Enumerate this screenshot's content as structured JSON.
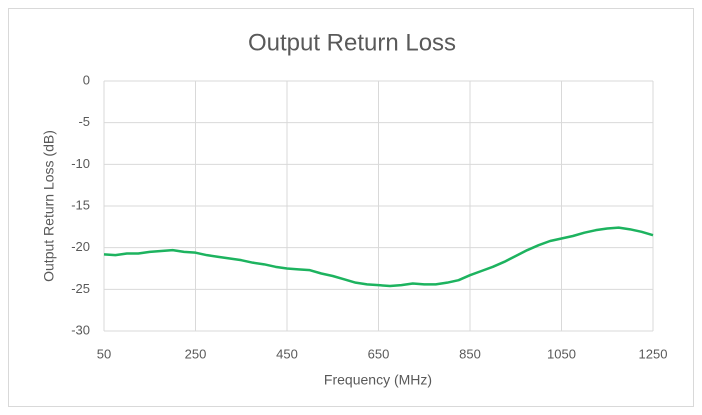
{
  "chart_data": {
    "type": "line",
    "title": "Output Return Loss",
    "x_label": "Frequency (MHz)",
    "y_label": "Output Return Loss (dB)",
    "x": [
      50,
      75,
      100,
      125,
      150,
      175,
      200,
      225,
      250,
      275,
      300,
      325,
      350,
      375,
      400,
      425,
      450,
      475,
      500,
      525,
      550,
      575,
      600,
      625,
      650,
      675,
      700,
      725,
      750,
      775,
      800,
      825,
      850,
      875,
      900,
      925,
      950,
      975,
      1000,
      1025,
      1050,
      1075,
      1100,
      1125,
      1150,
      1175,
      1200,
      1225,
      1250
    ],
    "series": [
      {
        "name": "Output Return Loss",
        "color": "#1db35f",
        "values": [
          -20.8,
          -20.9,
          -20.7,
          -20.7,
          -20.5,
          -20.4,
          -20.3,
          -20.5,
          -20.6,
          -20.9,
          -21.1,
          -21.3,
          -21.5,
          -21.8,
          -22.0,
          -22.3,
          -22.5,
          -22.6,
          -22.7,
          -23.1,
          -23.4,
          -23.8,
          -24.2,
          -24.4,
          -24.5,
          -24.6,
          -24.5,
          -24.3,
          -24.4,
          -24.4,
          -24.2,
          -23.9,
          -23.3,
          -22.8,
          -22.3,
          -21.7,
          -21.0,
          -20.3,
          -19.7,
          -19.2,
          -18.9,
          -18.6,
          -18.2,
          -17.9,
          -17.7,
          -17.6,
          -17.8,
          -18.1,
          -18.5
        ]
      }
    ],
    "xlim": [
      50,
      1250
    ],
    "xticks": [
      50,
      250,
      450,
      650,
      850,
      1050,
      1250
    ],
    "ylim": [
      -30,
      0
    ],
    "yticks": [
      0,
      -5,
      -10,
      -15,
      -20,
      -25,
      -30
    ],
    "grid": true
  }
}
